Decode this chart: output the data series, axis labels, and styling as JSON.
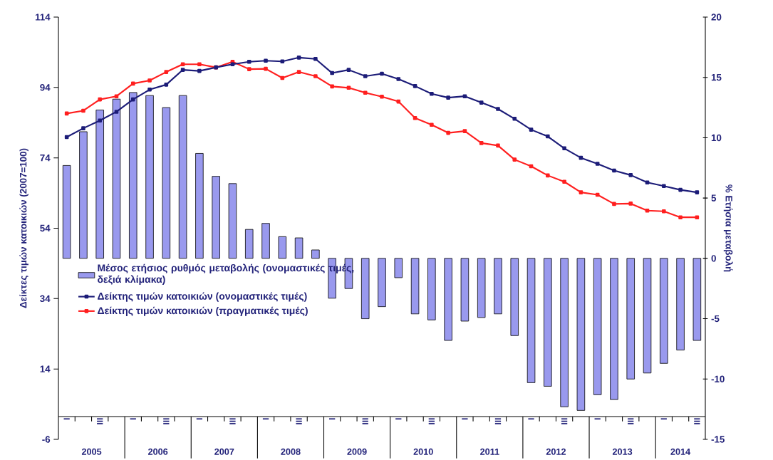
{
  "chart_data": {
    "type": "line",
    "ylabel": "Δείκτες τιμών κατοικιών (2007=100)",
    "y2label": "% Ετήσια μεταβολή",
    "categories": [
      "I",
      null,
      "III",
      null,
      "I",
      null,
      "III",
      null,
      "I",
      null,
      "III",
      null,
      "I",
      null,
      "III",
      null,
      "I",
      null,
      "III",
      null,
      "I",
      null,
      "III",
      null,
      "I",
      null,
      "III",
      null,
      "I",
      null,
      "III",
      null,
      "I",
      null,
      "III",
      null,
      "I",
      null,
      "III"
    ],
    "annotations": [
      "2005",
      "2006",
      "2007",
      "2008",
      "2009",
      "2010",
      "2011",
      "2012",
      "2013",
      "2014"
    ],
    "series": [
      {
        "name": "Μέσος ετήσιος ρυθμός μεταβολής (ονομαστικές τιμές, δεξιά κλίμακα)",
        "type": "bar",
        "axis": "y2",
        "color": "#9999ee",
        "values": [
          7.7,
          10.5,
          12.3,
          13.2,
          13.75,
          13.5,
          12.5,
          13.5,
          8.7,
          6.8,
          6.2,
          2.4,
          2.9,
          1.8,
          1.7,
          0.7,
          -3.3,
          -2.5,
          -5.0,
          -4.0,
          -1.6,
          -4.6,
          -5.1,
          -6.8,
          -5.2,
          -4.9,
          -4.6,
          -6.4,
          -10.3,
          -10.6,
          -12.3,
          -12.6,
          -11.3,
          -11.7,
          -10.0,
          -9.5,
          -8.7,
          -7.6,
          -6.8
        ]
      },
      {
        "name": "Δείκτης τιμών κατοικιών (ονομαστικές τιμές)",
        "color": "#1c1c78",
        "values": [
          79.9,
          82.4,
          84.6,
          87.1,
          90.6,
          93.4,
          94.8,
          99.0,
          98.7,
          99.7,
          100.6,
          101.3,
          101.6,
          101.4,
          102.5,
          102.1,
          98.1,
          99.0,
          97.2,
          97.9,
          96.4,
          94.4,
          92.2,
          91.1,
          91.5,
          89.7,
          87.9,
          85.1,
          82.0,
          80.1,
          76.7,
          74.0,
          72.3,
          70.4,
          69.1,
          67.0,
          66.0,
          64.9,
          64.2
        ]
      },
      {
        "name": "Δείκτης τιμών κατοικιών (πραγματικές τιμές)",
        "color": "#ff1f1f",
        "values": [
          86.6,
          87.4,
          90.6,
          91.5,
          95.1,
          96.0,
          98.4,
          100.6,
          100.6,
          99.7,
          101.3,
          99.2,
          99.3,
          96.7,
          98.4,
          97.2,
          94.3,
          93.9,
          92.5,
          91.4,
          90.0,
          85.3,
          83.4,
          81.1,
          81.6,
          78.2,
          77.5,
          73.5,
          71.6,
          69.0,
          67.2,
          64.2,
          63.5,
          60.9,
          61.0,
          59.0,
          58.8,
          57.1,
          57.1
        ]
      }
    ],
    "ylim": [
      -6,
      114
    ],
    "yticks": [
      -6,
      14,
      34,
      54,
      74,
      94,
      114
    ],
    "y2lim": [
      -15,
      20
    ],
    "y2ticks": [
      -15,
      -10,
      -5,
      0,
      5,
      10,
      15,
      20
    ],
    "legend": "bottom left",
    "marker": "square",
    "line_style": "solid"
  }
}
